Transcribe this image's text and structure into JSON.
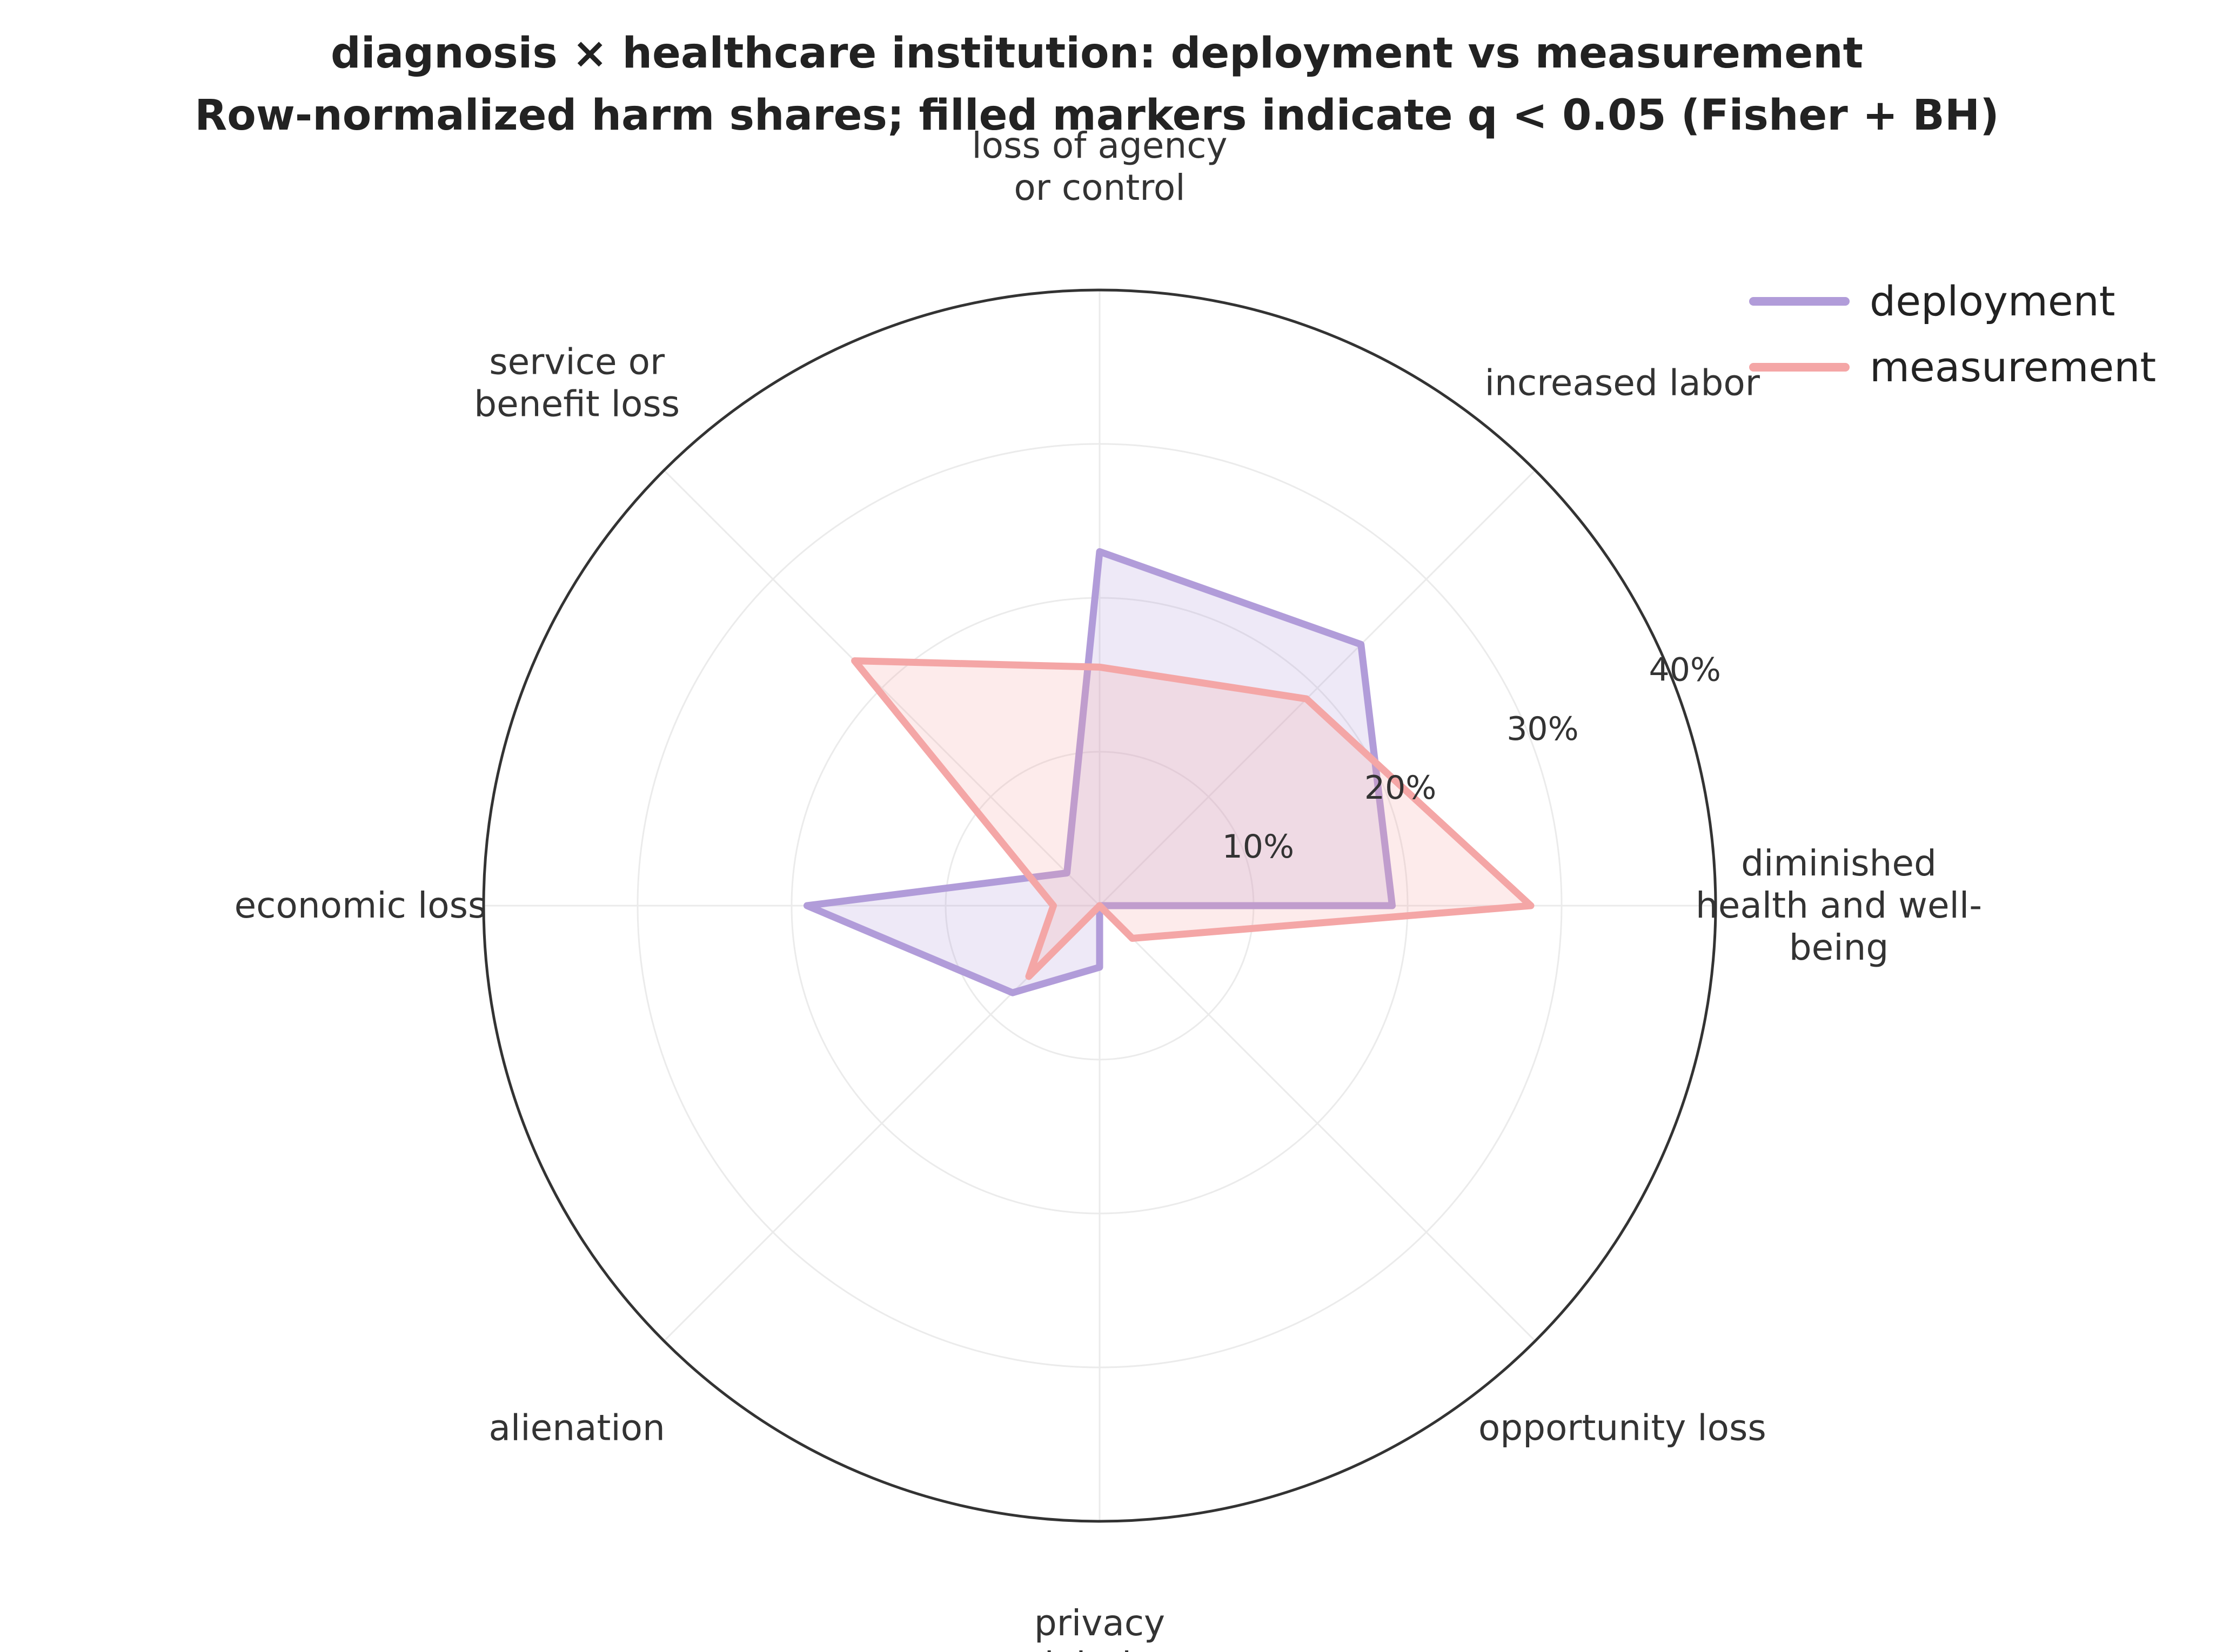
{
  "chart_data": {
    "type": "radar",
    "title": "diagnosis × healthcare institution: deployment vs measurement",
    "subtitle": "Row-normalized harm shares; filled markers indicate q < 0.05 (Fisher + BH)",
    "categories": [
      [
        "diminished",
        "health and well-",
        "being"
      ],
      [
        "increased labor"
      ],
      [
        "loss of agency",
        "or control"
      ],
      [
        "service or",
        "benefit loss"
      ],
      [
        "economic loss"
      ],
      [
        "alienation"
      ],
      [
        "privacy",
        "violation"
      ],
      [
        "opportunity loss"
      ]
    ],
    "r_ticks": [
      10,
      20,
      30,
      40
    ],
    "r_tick_labels": [
      "10%",
      "20%",
      "30%",
      "40%"
    ],
    "rlim": [
      0,
      40
    ],
    "series": [
      {
        "name": "deployment",
        "color": "#b19cd9",
        "values": [
          19.0,
          24.0,
          23.0,
          3.0,
          19.0,
          8.0,
          4.0,
          0.0
        ]
      },
      {
        "name": "measurement",
        "color": "#f4a6a6",
        "values": [
          28.0,
          19.0,
          15.5,
          22.5,
          3.0,
          6.5,
          0.0,
          3.0
        ]
      }
    ],
    "legend_position": "top-right",
    "grid": true
  }
}
